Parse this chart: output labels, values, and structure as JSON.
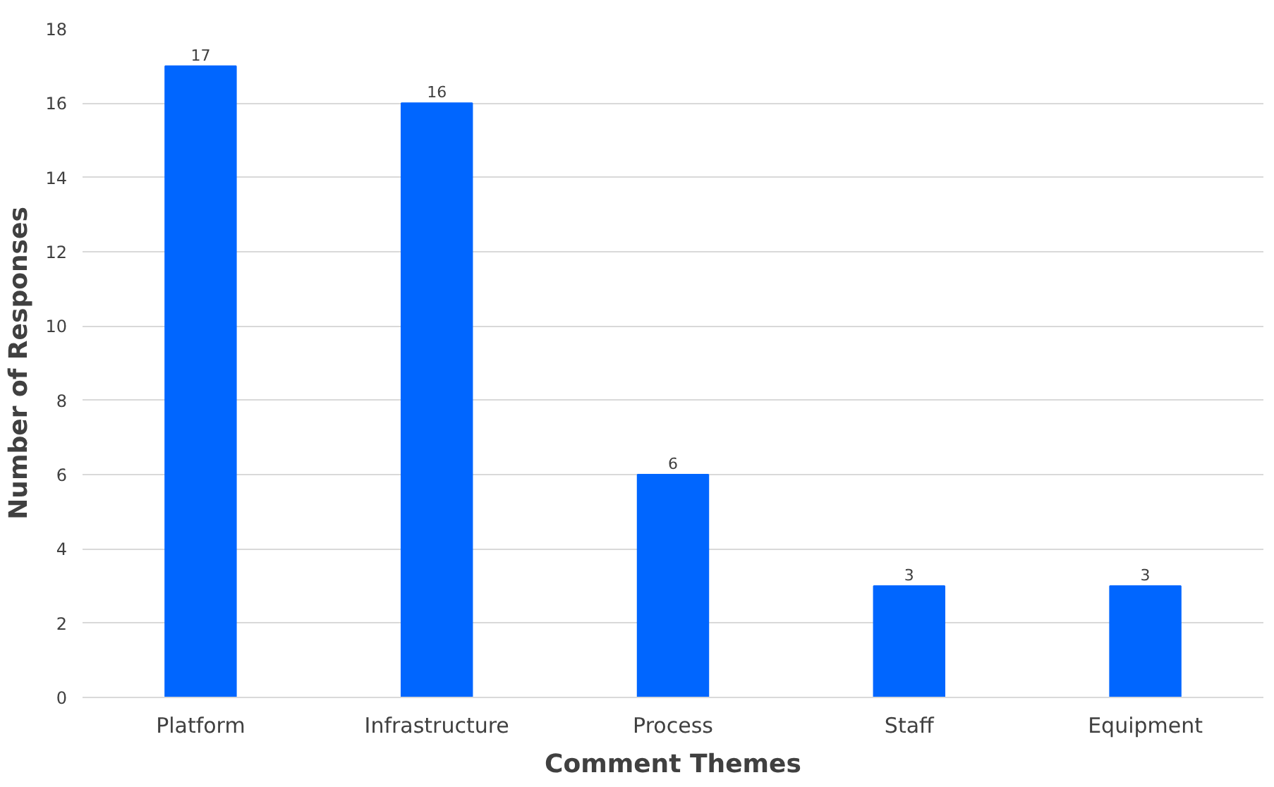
{
  "chart_data": {
    "type": "bar",
    "xlabel": "Comment Themes",
    "ylabel": "Number of Responses",
    "categories": [
      "Platform",
      "Infrastructure",
      "Process",
      "Staff",
      "Equipment"
    ],
    "values": [
      17,
      16,
      6,
      3,
      3
    ],
    "color": "#0066ff",
    "ylim": [
      0,
      18
    ],
    "yticks": [
      0,
      2,
      4,
      6,
      8,
      10,
      12,
      14,
      16,
      18
    ],
    "grid": "y",
    "data_labels": true
  }
}
